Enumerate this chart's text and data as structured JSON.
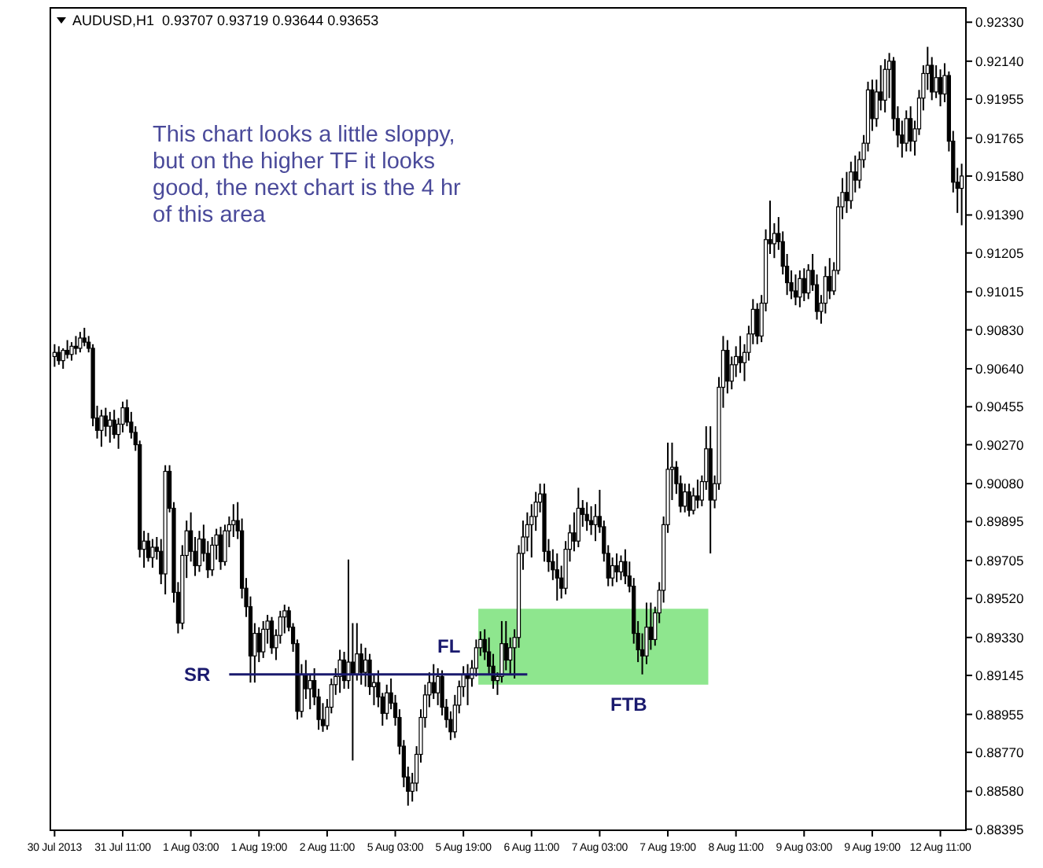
{
  "chart_data": {
    "type": "candlestick",
    "title": "AUDUSD,H1  0.93707 0.93719 0.93644 0.93653",
    "categories": [
      "30 Jul 2013",
      null,
      null,
      null,
      null,
      null,
      null,
      null,
      null,
      null,
      null,
      null,
      null,
      null,
      null,
      null,
      "31 Jul 11:00",
      null,
      null,
      null,
      null,
      null,
      null,
      null,
      null,
      null,
      null,
      null,
      null,
      null,
      null,
      null,
      "1 Aug 03:00",
      null,
      null,
      null,
      null,
      null,
      null,
      null,
      null,
      null,
      null,
      null,
      null,
      null,
      null,
      null,
      "1 Aug 19:00",
      null,
      null,
      null,
      null,
      null,
      null,
      null,
      null,
      null,
      null,
      null,
      null,
      null,
      null,
      null,
      "2 Aug 11:00",
      null,
      null,
      null,
      null,
      null,
      null,
      null,
      null,
      null,
      null,
      null,
      null,
      null,
      null,
      null,
      "5 Aug 03:00",
      null,
      null,
      null,
      null,
      null,
      null,
      null,
      null,
      null,
      null,
      null,
      null,
      null,
      null,
      null,
      "5 Aug 19:00",
      null,
      null,
      null,
      null,
      null,
      null,
      null,
      null,
      null,
      null,
      null,
      null,
      null,
      null,
      null,
      "6 Aug 11:00",
      null,
      null,
      null,
      null,
      null,
      null,
      null,
      null,
      null,
      null,
      null,
      null,
      null,
      null,
      null,
      "7 Aug 03:00",
      null,
      null,
      null,
      null,
      null,
      null,
      null,
      null,
      null,
      null,
      null,
      null,
      null,
      null,
      null,
      "7 Aug 19:00",
      null,
      null,
      null,
      null,
      null,
      null,
      null,
      null,
      null,
      null,
      null,
      null,
      null,
      null,
      null,
      "8 Aug 11:00",
      null,
      null,
      null,
      null,
      null,
      null,
      null,
      null,
      null,
      null,
      null,
      null,
      null,
      null,
      null,
      "9 Aug 03:00",
      null,
      null,
      null,
      null,
      null,
      null,
      null,
      null,
      null,
      null,
      null,
      null,
      null,
      null,
      null,
      "9 Aug 19:00",
      null,
      null,
      null,
      null,
      null,
      null,
      null,
      null,
      null,
      null,
      null,
      null,
      null,
      null,
      null,
      "12 Aug 11:00",
      null,
      null,
      null,
      null,
      null
    ],
    "ohlc": [
      [
        0.907,
        0.9076,
        0.9065,
        0.9072
      ],
      [
        0.9072,
        0.9075,
        0.9066,
        0.9068
      ],
      [
        0.9068,
        0.9074,
        0.9064,
        0.9073
      ],
      [
        0.9073,
        0.9078,
        0.9069,
        0.9071
      ],
      [
        0.9071,
        0.9077,
        0.9068,
        0.9075
      ],
      [
        0.9075,
        0.908,
        0.9071,
        0.9074
      ],
      [
        0.9074,
        0.9082,
        0.9072,
        0.9079
      ],
      [
        0.9079,
        0.9084,
        0.9075,
        0.9077
      ],
      [
        0.9077,
        0.908,
        0.9072,
        0.9074
      ],
      [
        0.9074,
        0.9076,
        0.9036,
        0.904
      ],
      [
        0.904,
        0.9046,
        0.903,
        0.9034
      ],
      [
        0.9034,
        0.9044,
        0.9026,
        0.9041
      ],
      [
        0.9041,
        0.9045,
        0.9031,
        0.9036
      ],
      [
        0.9036,
        0.9043,
        0.9028,
        0.9039
      ],
      [
        0.9039,
        0.9044,
        0.903,
        0.9032
      ],
      [
        0.9032,
        0.904,
        0.9025,
        0.9037
      ],
      [
        0.9037,
        0.9048,
        0.9033,
        0.9045
      ],
      [
        0.9045,
        0.9049,
        0.9036,
        0.9038
      ],
      [
        0.9038,
        0.9043,
        0.903,
        0.9033
      ],
      [
        0.9033,
        0.9036,
        0.9024,
        0.9027
      ],
      [
        0.9027,
        0.9029,
        0.8972,
        0.8976
      ],
      [
        0.8976,
        0.8985,
        0.8967,
        0.898
      ],
      [
        0.898,
        0.8984,
        0.897,
        0.8972
      ],
      [
        0.8972,
        0.8981,
        0.8967,
        0.8977
      ],
      [
        0.8977,
        0.8982,
        0.8971,
        0.8975
      ],
      [
        0.8975,
        0.8981,
        0.8959,
        0.8964
      ],
      [
        0.8964,
        0.9017,
        0.8954,
        0.9014
      ],
      [
        0.9014,
        0.9017,
        0.8994,
        0.8996
      ],
      [
        0.8996,
        0.8999,
        0.895,
        0.8955
      ],
      [
        0.8955,
        0.896,
        0.8935,
        0.894
      ],
      [
        0.894,
        0.8978,
        0.8937,
        0.8973
      ],
      [
        0.8973,
        0.899,
        0.8962,
        0.8985
      ],
      [
        0.8985,
        0.8994,
        0.897,
        0.8975
      ],
      [
        0.8975,
        0.8982,
        0.8963,
        0.8968
      ],
      [
        0.8968,
        0.8985,
        0.8965,
        0.8981
      ],
      [
        0.8981,
        0.8988,
        0.897,
        0.8974
      ],
      [
        0.8974,
        0.898,
        0.8962,
        0.8966
      ],
      [
        0.8966,
        0.8982,
        0.8963,
        0.8978
      ],
      [
        0.8978,
        0.8986,
        0.8971,
        0.8983
      ],
      [
        0.8983,
        0.8987,
        0.8966,
        0.897
      ],
      [
        0.897,
        0.8988,
        0.8968,
        0.8985
      ],
      [
        0.8985,
        0.8992,
        0.8977,
        0.8988
      ],
      [
        0.8988,
        0.8998,
        0.8982,
        0.899
      ],
      [
        0.899,
        0.8999,
        0.8981,
        0.8985
      ],
      [
        0.8985,
        0.8991,
        0.8952,
        0.8957
      ],
      [
        0.8957,
        0.8962,
        0.8943,
        0.8948
      ],
      [
        0.8948,
        0.8953,
        0.8911,
        0.8924
      ],
      [
        0.8924,
        0.894,
        0.8911,
        0.8935
      ],
      [
        0.8935,
        0.8938,
        0.8921,
        0.8926
      ],
      [
        0.8926,
        0.8941,
        0.8923,
        0.8937
      ],
      [
        0.8937,
        0.8944,
        0.893,
        0.8941
      ],
      [
        0.8941,
        0.8943,
        0.8925,
        0.8928
      ],
      [
        0.8928,
        0.8937,
        0.8922,
        0.8934
      ],
      [
        0.8934,
        0.8946,
        0.893,
        0.8943
      ],
      [
        0.8943,
        0.8949,
        0.8935,
        0.8946
      ],
      [
        0.8946,
        0.8948,
        0.8936,
        0.8938
      ],
      [
        0.8938,
        0.894,
        0.8926,
        0.893
      ],
      [
        0.893,
        0.8932,
        0.8893,
        0.8897
      ],
      [
        0.8897,
        0.892,
        0.8894,
        0.8915
      ],
      [
        0.8915,
        0.8922,
        0.8903,
        0.8908
      ],
      [
        0.8908,
        0.8915,
        0.8898,
        0.8912
      ],
      [
        0.8912,
        0.8918,
        0.89,
        0.8904
      ],
      [
        0.8904,
        0.8908,
        0.8888,
        0.8893
      ],
      [
        0.8893,
        0.8901,
        0.8887,
        0.889
      ],
      [
        0.889,
        0.8903,
        0.8888,
        0.8899
      ],
      [
        0.8899,
        0.8913,
        0.8896,
        0.891
      ],
      [
        0.891,
        0.8918,
        0.8905,
        0.8914
      ],
      [
        0.8914,
        0.8927,
        0.8906,
        0.8922
      ],
      [
        0.8922,
        0.8926,
        0.8908,
        0.8912
      ],
      [
        0.8912,
        0.8971,
        0.8908,
        0.8921
      ],
      [
        0.8921,
        0.894,
        0.8873,
        0.8915
      ],
      [
        0.8915,
        0.894,
        0.8912,
        0.8925
      ],
      [
        0.8925,
        0.893,
        0.891,
        0.8916
      ],
      [
        0.8916,
        0.8928,
        0.8909,
        0.8922
      ],
      [
        0.8922,
        0.8925,
        0.8905,
        0.8909
      ],
      [
        0.8909,
        0.8915,
        0.89,
        0.8911
      ],
      [
        0.8911,
        0.8917,
        0.8899,
        0.8904
      ],
      [
        0.8904,
        0.8906,
        0.889,
        0.8896
      ],
      [
        0.8896,
        0.891,
        0.8893,
        0.8906
      ],
      [
        0.8906,
        0.8913,
        0.8898,
        0.8901
      ],
      [
        0.8901,
        0.8905,
        0.889,
        0.8894
      ],
      [
        0.8894,
        0.8898,
        0.8876,
        0.888
      ],
      [
        0.888,
        0.8883,
        0.886,
        0.8865
      ],
      [
        0.8865,
        0.887,
        0.8851,
        0.8858
      ],
      [
        0.8858,
        0.8867,
        0.8853,
        0.8862
      ],
      [
        0.8862,
        0.888,
        0.8858,
        0.8876
      ],
      [
        0.8876,
        0.8898,
        0.8872,
        0.8894
      ],
      [
        0.8894,
        0.891,
        0.8889,
        0.8905
      ],
      [
        0.8905,
        0.8916,
        0.8899,
        0.8911
      ],
      [
        0.8911,
        0.892,
        0.8903,
        0.8906
      ],
      [
        0.8906,
        0.8918,
        0.89,
        0.8914
      ],
      [
        0.8914,
        0.8917,
        0.8895,
        0.8899
      ],
      [
        0.8899,
        0.8903,
        0.8889,
        0.8893
      ],
      [
        0.8893,
        0.8897,
        0.8883,
        0.8887
      ],
      [
        0.8887,
        0.8905,
        0.8884,
        0.89
      ],
      [
        0.89,
        0.8912,
        0.8896,
        0.8909
      ],
      [
        0.8909,
        0.8919,
        0.8904,
        0.8915
      ],
      [
        0.8915,
        0.892,
        0.89,
        0.8913
      ],
      [
        0.8913,
        0.8922,
        0.8909,
        0.8918
      ],
      [
        0.8918,
        0.8932,
        0.8914,
        0.8928
      ],
      [
        0.8928,
        0.8936,
        0.8924,
        0.8932
      ],
      [
        0.8932,
        0.8937,
        0.8922,
        0.8926
      ],
      [
        0.8926,
        0.8933,
        0.8915,
        0.8919
      ],
      [
        0.8919,
        0.8925,
        0.8908,
        0.8912
      ],
      [
        0.8912,
        0.8916,
        0.8905,
        0.8914
      ],
      [
        0.8914,
        0.8941,
        0.8911,
        0.893
      ],
      [
        0.893,
        0.8941,
        0.8917,
        0.8922
      ],
      [
        0.8922,
        0.8933,
        0.8915,
        0.8928
      ],
      [
        0.8928,
        0.8937,
        0.8913,
        0.8933
      ],
      [
        0.8933,
        0.8978,
        0.8928,
        0.8974
      ],
      [
        0.8974,
        0.899,
        0.8966,
        0.8982
      ],
      [
        0.8982,
        0.8994,
        0.8975,
        0.8988
      ],
      [
        0.8988,
        0.8998,
        0.8972,
        0.8992
      ],
      [
        0.8992,
        0.9004,
        0.8985,
        0.8999
      ],
      [
        0.8999,
        0.9008,
        0.8994,
        0.9003
      ],
      [
        0.9003,
        0.9008,
        0.897,
        0.8975
      ],
      [
        0.8975,
        0.8981,
        0.8965,
        0.897
      ],
      [
        0.897,
        0.8976,
        0.8961,
        0.8966
      ],
      [
        0.8966,
        0.8974,
        0.8951,
        0.8962
      ],
      [
        0.8962,
        0.8968,
        0.8952,
        0.8957
      ],
      [
        0.8957,
        0.898,
        0.8954,
        0.8976
      ],
      [
        0.8976,
        0.8988,
        0.897,
        0.8984
      ],
      [
        0.8984,
        0.8994,
        0.8975,
        0.898
      ],
      [
        0.898,
        0.9006,
        0.8977,
        0.8996
      ],
      [
        0.8996,
        0.9,
        0.8987,
        0.8993
      ],
      [
        0.8993,
        0.8999,
        0.8985,
        0.899
      ],
      [
        0.899,
        0.8997,
        0.8983,
        0.8988
      ],
      [
        0.8988,
        0.8998,
        0.898,
        0.8992
      ],
      [
        0.8992,
        0.9005,
        0.8984,
        0.8987
      ],
      [
        0.8987,
        0.899,
        0.897,
        0.8974
      ],
      [
        0.8974,
        0.8978,
        0.8958,
        0.8962
      ],
      [
        0.8962,
        0.8972,
        0.8958,
        0.8968
      ],
      [
        0.8968,
        0.8974,
        0.896,
        0.8965
      ],
      [
        0.8965,
        0.8973,
        0.8961,
        0.897
      ],
      [
        0.897,
        0.8976,
        0.8959,
        0.8963
      ],
      [
        0.8963,
        0.897,
        0.8955,
        0.8958
      ],
      [
        0.8958,
        0.8962,
        0.893,
        0.8935
      ],
      [
        0.8935,
        0.8941,
        0.8921,
        0.8927
      ],
      [
        0.8927,
        0.8935,
        0.8915,
        0.8924
      ],
      [
        0.8924,
        0.895,
        0.892,
        0.8938
      ],
      [
        0.8938,
        0.895,
        0.8927,
        0.8932
      ],
      [
        0.8932,
        0.8948,
        0.8929,
        0.8945
      ],
      [
        0.8945,
        0.896,
        0.894,
        0.8956
      ],
      [
        0.8956,
        0.8992,
        0.895,
        0.8988
      ],
      [
        0.8988,
        0.9028,
        0.8984,
        0.9015
      ],
      [
        0.9015,
        0.9028,
        0.9,
        0.9016
      ],
      [
        0.9016,
        0.9019,
        0.9003,
        0.9008
      ],
      [
        0.9008,
        0.9012,
        0.8994,
        0.8997
      ],
      [
        0.8997,
        0.9008,
        0.8994,
        0.9004
      ],
      [
        0.9004,
        0.9008,
        0.8992,
        0.8995
      ],
      [
        0.8995,
        0.9006,
        0.8993,
        0.9002
      ],
      [
        0.9002,
        0.901,
        0.8996,
        0.9
      ],
      [
        0.9,
        0.9012,
        0.8997,
        0.9009
      ],
      [
        0.9009,
        0.9036,
        0.9005,
        0.9025
      ],
      [
        0.9025,
        0.9036,
        0.8974,
        0.9
      ],
      [
        0.9,
        0.9012,
        0.8996,
        0.9008
      ],
      [
        0.9008,
        0.906,
        0.9005,
        0.9055
      ],
      [
        0.9055,
        0.908,
        0.9045,
        0.9073
      ],
      [
        0.9073,
        0.9078,
        0.9052,
        0.9058
      ],
      [
        0.9058,
        0.907,
        0.9054,
        0.9066
      ],
      [
        0.9066,
        0.9075,
        0.906,
        0.907
      ],
      [
        0.907,
        0.908,
        0.9062,
        0.9067
      ],
      [
        0.9067,
        0.9076,
        0.9058,
        0.9072
      ],
      [
        0.9072,
        0.9085,
        0.9068,
        0.9081
      ],
      [
        0.9081,
        0.9098,
        0.9076,
        0.9093
      ],
      [
        0.9093,
        0.9096,
        0.9076,
        0.908
      ],
      [
        0.908,
        0.91,
        0.9077,
        0.9096
      ],
      [
        0.9096,
        0.9132,
        0.9092,
        0.9127
      ],
      [
        0.9127,
        0.9146,
        0.912,
        0.9125
      ],
      [
        0.9125,
        0.9135,
        0.9118,
        0.913
      ],
      [
        0.913,
        0.9138,
        0.9122,
        0.9126
      ],
      [
        0.9126,
        0.9131,
        0.911,
        0.9114
      ],
      [
        0.9114,
        0.912,
        0.91,
        0.9106
      ],
      [
        0.9106,
        0.9112,
        0.9098,
        0.9102
      ],
      [
        0.9102,
        0.911,
        0.9095,
        0.9099
      ],
      [
        0.9099,
        0.9112,
        0.9094,
        0.9108
      ],
      [
        0.9108,
        0.9113,
        0.9097,
        0.9101
      ],
      [
        0.9101,
        0.9115,
        0.9098,
        0.9112
      ],
      [
        0.9112,
        0.912,
        0.9102,
        0.9105
      ],
      [
        0.9105,
        0.911,
        0.9088,
        0.9092
      ],
      [
        0.9092,
        0.91,
        0.9086,
        0.9096
      ],
      [
        0.9096,
        0.9114,
        0.9091,
        0.9109
      ],
      [
        0.9109,
        0.9118,
        0.9098,
        0.9102
      ],
      [
        0.9102,
        0.9116,
        0.91,
        0.9112
      ],
      [
        0.9112,
        0.9148,
        0.911,
        0.9143
      ],
      [
        0.9143,
        0.9157,
        0.9137,
        0.915
      ],
      [
        0.915,
        0.916,
        0.914,
        0.9146
      ],
      [
        0.9146,
        0.9165,
        0.9142,
        0.916
      ],
      [
        0.916,
        0.9168,
        0.915,
        0.9156
      ],
      [
        0.9156,
        0.917,
        0.9152,
        0.9166
      ],
      [
        0.9166,
        0.9178,
        0.9162,
        0.9174
      ],
      [
        0.9174,
        0.9204,
        0.917,
        0.92
      ],
      [
        0.92,
        0.9205,
        0.918,
        0.9186
      ],
      [
        0.9186,
        0.9205,
        0.9182,
        0.9199
      ],
      [
        0.9199,
        0.9212,
        0.919,
        0.9195
      ],
      [
        0.9195,
        0.9215,
        0.9189,
        0.921
      ],
      [
        0.921,
        0.9218,
        0.9196,
        0.9214
      ],
      [
        0.9214,
        0.9216,
        0.918,
        0.9186
      ],
      [
        0.9186,
        0.9192,
        0.9172,
        0.9178
      ],
      [
        0.9178,
        0.9185,
        0.9167,
        0.9174
      ],
      [
        0.9174,
        0.919,
        0.917,
        0.9186
      ],
      [
        0.9186,
        0.9192,
        0.917,
        0.9175
      ],
      [
        0.9175,
        0.9185,
        0.9168,
        0.9181
      ],
      [
        0.9181,
        0.92,
        0.9178,
        0.9196
      ],
      [
        0.9196,
        0.9212,
        0.919,
        0.9208
      ],
      [
        0.9208,
        0.9221,
        0.92,
        0.9212
      ],
      [
        0.9212,
        0.9216,
        0.9195,
        0.9199
      ],
      [
        0.9199,
        0.9212,
        0.9196,
        0.9206
      ],
      [
        0.9206,
        0.921,
        0.9192,
        0.9198
      ],
      [
        0.9198,
        0.9213,
        0.9194,
        0.9207
      ],
      [
        0.9207,
        0.9209,
        0.917,
        0.9175
      ],
      [
        0.9175,
        0.918,
        0.915,
        0.9155
      ],
      [
        0.9155,
        0.9162,
        0.914,
        0.9152
      ],
      [
        0.9152,
        0.9164,
        0.9134,
        0.9158
      ]
    ],
    "ylim": [
      0.8839,
      0.924
    ],
    "yticks": [
      {
        "value": 0.9233,
        "label": "0.92330"
      },
      {
        "value": 0.9214,
        "label": "0.92140"
      },
      {
        "value": 0.91955,
        "label": "0.91955"
      },
      {
        "value": 0.91765,
        "label": "0.91765"
      },
      {
        "value": 0.9158,
        "label": "0.91580"
      },
      {
        "value": 0.9139,
        "label": "0.91390"
      },
      {
        "value": 0.91205,
        "label": "0.91205"
      },
      {
        "value": 0.91015,
        "label": "0.91015"
      },
      {
        "value": 0.9083,
        "label": "0.90830"
      },
      {
        "value": 0.9064,
        "label": "0.90640"
      },
      {
        "value": 0.90455,
        "label": "0.90455"
      },
      {
        "value": 0.9027,
        "label": "0.90270"
      },
      {
        "value": 0.9008,
        "label": "0.90080"
      },
      {
        "value": 0.89895,
        "label": "0.89895"
      },
      {
        "value": 0.89705,
        "label": "0.89705"
      },
      {
        "value": 0.8952,
        "label": "0.89520"
      },
      {
        "value": 0.8933,
        "label": "0.89330"
      },
      {
        "value": 0.89145,
        "label": "0.89145"
      },
      {
        "value": 0.88955,
        "label": "0.88955"
      },
      {
        "value": 0.8877,
        "label": "0.88770"
      },
      {
        "value": 0.8858,
        "label": "0.88580"
      },
      {
        "value": 0.88395,
        "label": "0.88395"
      }
    ],
    "ref_lines": [
      {
        "axis": "y",
        "value": 0.8915,
        "label": "SR",
        "color": "#1a1a6e"
      }
    ],
    "bands": [
      {
        "axis": "y",
        "from": 0.891,
        "to": 0.8947,
        "color": "#8ee68e"
      }
    ],
    "annotations": [
      "This chart looks a little sloppy, but on the higher TF it looks good, the next chart is the 4 hr of this area",
      "FL",
      "FTB"
    ]
  }
}
